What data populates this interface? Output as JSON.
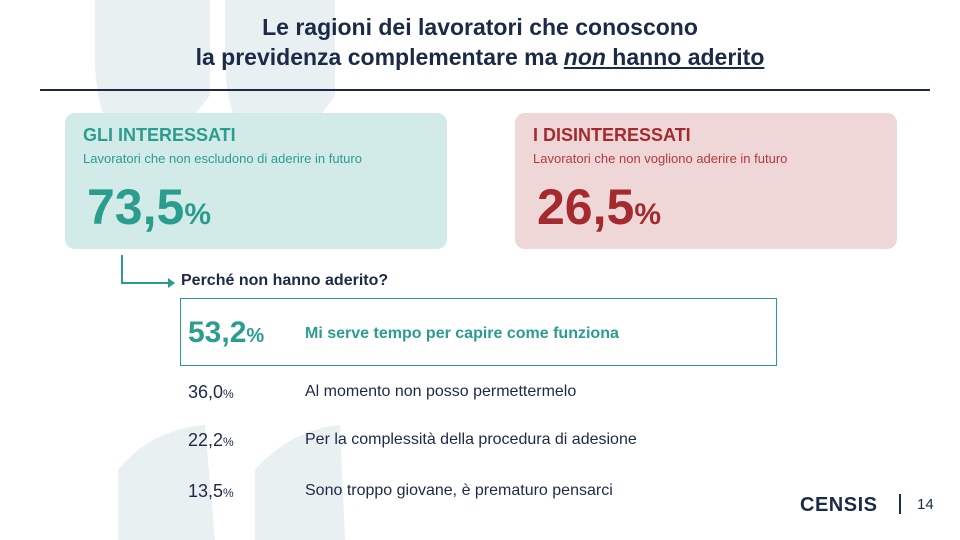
{
  "title": {
    "line1": "Le ragioni dei lavoratori che conoscono",
    "line2_before": "la previdenza complementare ma ",
    "line2_emph": "non",
    "line2_after": " hanno aderito "
  },
  "cards": {
    "interested": {
      "heading": "GLI INTERESSATI",
      "subtitle": "Lavoratori che non escludono di aderire in futuro",
      "value": "73,5",
      "percent_sign": "%"
    },
    "uninterested": {
      "heading": "I DISINTERESSATI",
      "subtitle": "Lavoratori che non vogliono aderire in futuro",
      "value": "26,5",
      "percent_sign": "%"
    }
  },
  "question": "Perché non hanno aderito?",
  "reasons": [
    {
      "value": "53,2",
      "percent_sign": "%",
      "text": "Mi serve tempo per capire come funziona"
    },
    {
      "value": "36,0",
      "percent_sign": "%",
      "text": "Al momento non posso permettermelo"
    },
    {
      "value": "22,2",
      "percent_sign": "%",
      "text": "Per la complessità della procedura di adesione"
    },
    {
      "value": "13,5",
      "percent_sign": "%",
      "text": "Sono troppo giovane, è prematuro pensarci"
    }
  ],
  "footer": {
    "logo": "CENSIS",
    "page": "14"
  },
  "colors": {
    "navy": "#1b2a47",
    "teal": "#2a9d8f",
    "teal_bg": "#d3ebe8",
    "red": "#a52a30",
    "red_bg": "#efd7d8",
    "decor": "#e6eff1"
  }
}
